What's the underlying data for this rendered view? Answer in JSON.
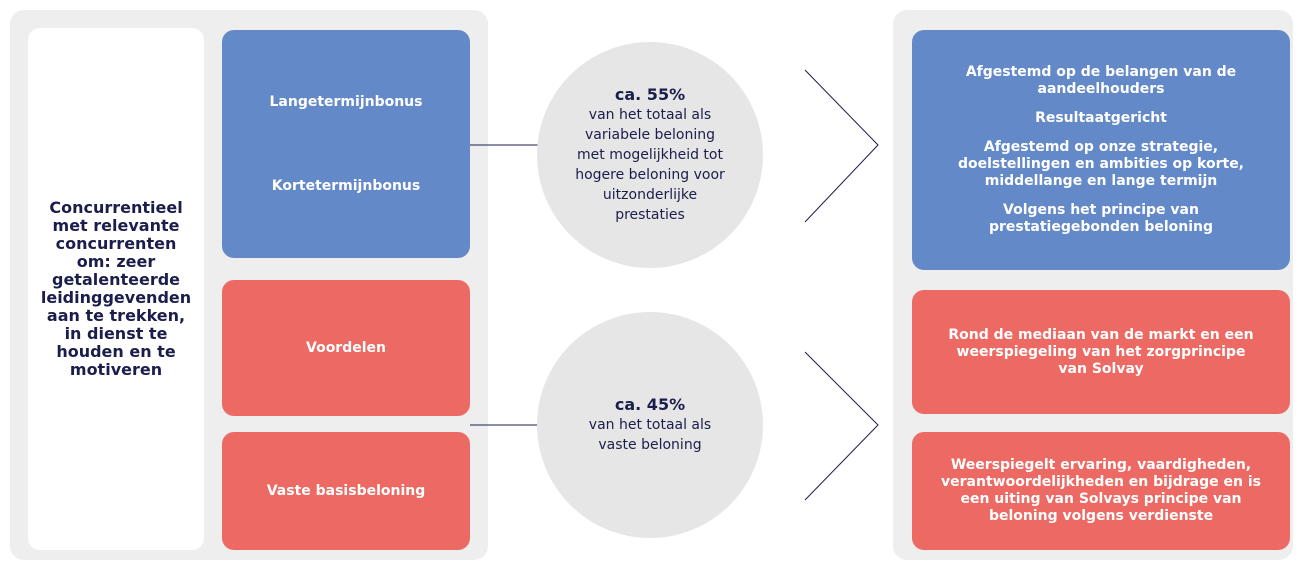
{
  "left": {
    "summary": "Concurrentieel met relevante concurrenten om: zeer getalenteerde leidinggevenden aan te trekken, in dienst te houden en te motiveren"
  },
  "components": {
    "long_term": "Langetermijnbonus",
    "short_term": "Kortetermijnbonus",
    "benefits": "Voordelen",
    "base": "Vaste basisbeloning"
  },
  "circles": [
    {
      "share": "ca. 55%",
      "text": "van het totaal als variabele beloning met mogelijkheid tot hogere beloning voor uitzonderlijke prestaties"
    },
    {
      "share": "ca. 45%",
      "text": "van het totaal als vaste beloning"
    }
  ],
  "right": {
    "variable": [
      "Afgestemd op de belangen van de aandeelhouders",
      "Resultaatgericht",
      "Afgestemd op onze strategie, doelstellingen en ambities op korte, middellange en lange termijn",
      "Volgens het principe van prestatiegebonden beloning"
    ],
    "benefits": "Rond de mediaan van de markt en een weerspiegeling van het zorgprincipe van Solvay",
    "base": "Weerspiegelt ervaring, vaardigheden, verantwoordelijkheden en bijdrage en is een uiting van Solvays principe van beloning volgens verdienste"
  }
}
